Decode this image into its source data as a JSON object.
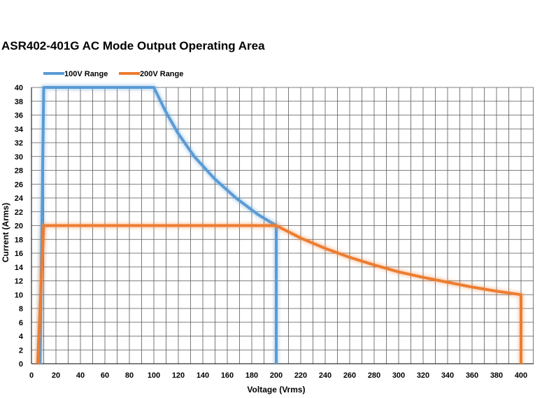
{
  "chart_data": {
    "type": "line",
    "title": "ASR402-401G AC Mode Output Operating Area",
    "xlabel": "Voltage (Vrms)",
    "ylabel": "Current (Arms)",
    "xlim": [
      0,
      400
    ],
    "ylim": [
      0,
      40
    ],
    "xticks": [
      "0",
      "20",
      "40",
      "60",
      "80",
      "100",
      "120",
      "140",
      "160",
      "180",
      "200",
      "220",
      "240",
      "260",
      "280",
      "300",
      "320",
      "340",
      "360",
      "380",
      "400"
    ],
    "yticks": [
      "0",
      "2",
      "4",
      "6",
      "8",
      "10",
      "12",
      "14",
      "16",
      "18",
      "20",
      "22",
      "24",
      "26",
      "28",
      "30",
      "32",
      "34",
      "36",
      "38",
      "40"
    ],
    "grid": true,
    "legend_position": "top-left",
    "series": [
      {
        "name": "100V Range",
        "color": "#5b9bd5",
        "x": [
          7,
          10,
          100,
          110,
          120,
          133,
          150,
          167,
          185,
          200,
          200
        ],
        "y": [
          0,
          40,
          40,
          36.4,
          33.3,
          30,
          26.7,
          24,
          21.6,
          20,
          0
        ]
      },
      {
        "name": "200V Range",
        "color": "#ed7d31",
        "x": [
          5,
          10,
          200,
          220,
          240,
          260,
          280,
          300,
          320,
          340,
          360,
          380,
          400,
          400
        ],
        "y": [
          0,
          20,
          20,
          18.2,
          16.7,
          15.4,
          14.3,
          13.3,
          12.5,
          11.8,
          11.1,
          10.5,
          10,
          0
        ]
      }
    ]
  }
}
